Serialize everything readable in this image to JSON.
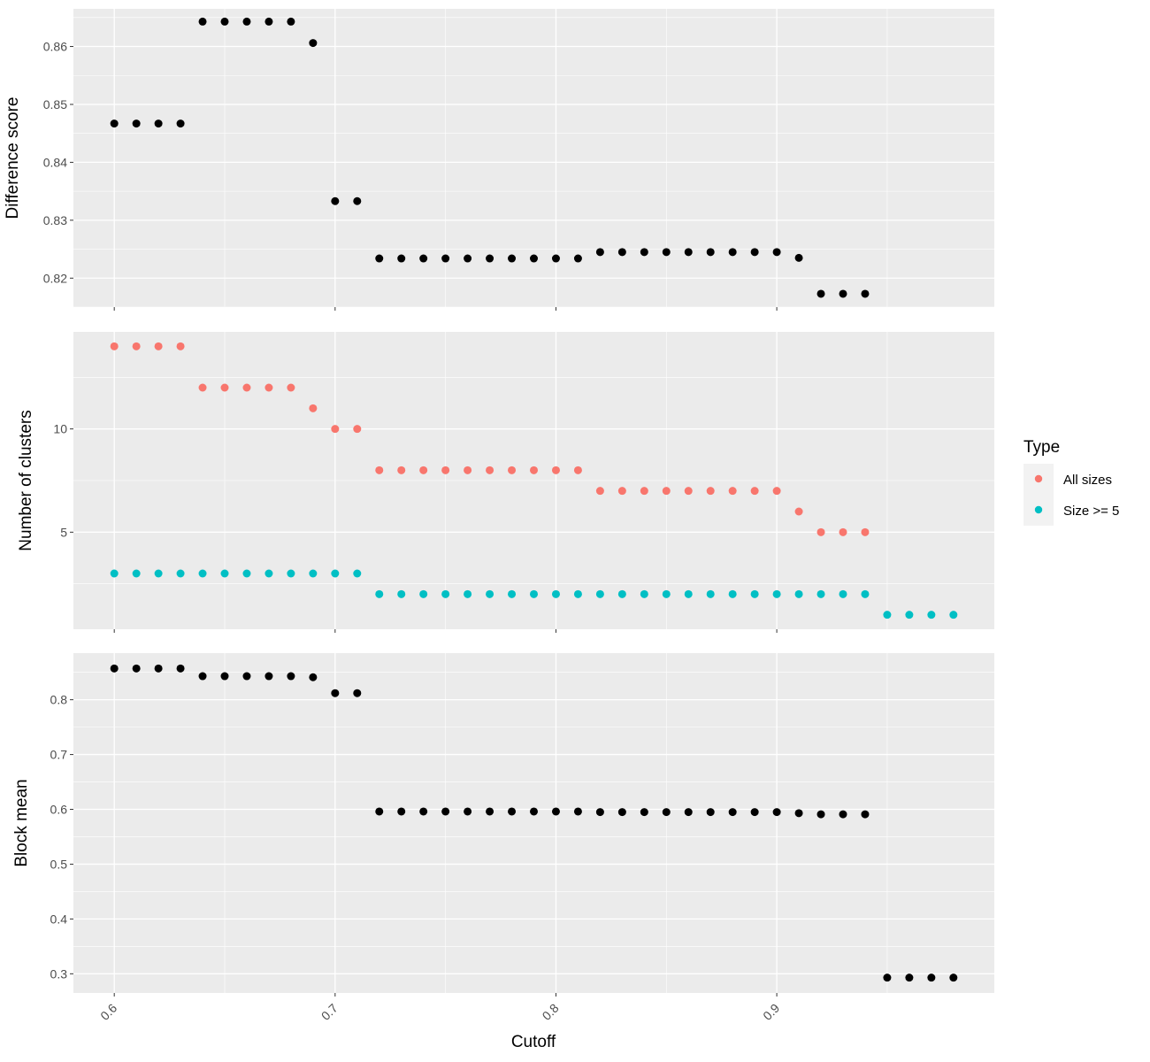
{
  "chart_data": [
    {
      "type": "scatter",
      "ylabel": "Difference score",
      "xlabel": "",
      "ylim": [
        0.815,
        0.8665
      ],
      "yticks": [
        0.82,
        0.83,
        0.84,
        0.85,
        0.86
      ],
      "ytick_labels": [
        "0.82",
        "0.83",
        "0.84",
        "0.85",
        "0.86"
      ],
      "series": [
        {
          "color": "#000000",
          "x": [
            0.6,
            0.61,
            0.62,
            0.63,
            0.64,
            0.65,
            0.66,
            0.67,
            0.68,
            0.69,
            0.7,
            0.71,
            0.72,
            0.73,
            0.74,
            0.75,
            0.76,
            0.77,
            0.78,
            0.79,
            0.8,
            0.81,
            0.82,
            0.83,
            0.84,
            0.85,
            0.86,
            0.87,
            0.88,
            0.89,
            0.9,
            0.91,
            0.92,
            0.93,
            0.94
          ],
          "y": [
            0.8467,
            0.8467,
            0.8467,
            0.8467,
            0.8643,
            0.8643,
            0.8643,
            0.8643,
            0.8643,
            0.8606,
            0.8333,
            0.8333,
            0.8234,
            0.8234,
            0.8234,
            0.8234,
            0.8234,
            0.8234,
            0.8234,
            0.8234,
            0.8234,
            0.8234,
            0.8245,
            0.8245,
            0.8245,
            0.8245,
            0.8245,
            0.8245,
            0.8245,
            0.8245,
            0.8245,
            0.8235,
            0.8173,
            0.8173,
            0.8173
          ]
        }
      ]
    },
    {
      "type": "scatter",
      "ylabel": "Number of clusters",
      "xlabel": "",
      "ylim": [
        0.3,
        14.7
      ],
      "yticks": [
        5,
        10
      ],
      "ytick_labels": [
        "5",
        "10"
      ],
      "series": [
        {
          "name": "All sizes",
          "color": "#F8766D",
          "x": [
            0.6,
            0.61,
            0.62,
            0.63,
            0.64,
            0.65,
            0.66,
            0.67,
            0.68,
            0.69,
            0.7,
            0.71,
            0.72,
            0.73,
            0.74,
            0.75,
            0.76,
            0.77,
            0.78,
            0.79,
            0.8,
            0.81,
            0.82,
            0.83,
            0.84,
            0.85,
            0.86,
            0.87,
            0.88,
            0.89,
            0.9,
            0.91,
            0.92,
            0.93,
            0.94
          ],
          "y": [
            14,
            14,
            14,
            14,
            12,
            12,
            12,
            12,
            12,
            11,
            10,
            10,
            8,
            8,
            8,
            8,
            8,
            8,
            8,
            8,
            8,
            8,
            7,
            7,
            7,
            7,
            7,
            7,
            7,
            7,
            7,
            6,
            5,
            5,
            5
          ]
        },
        {
          "name": "Size >= 5",
          "color": "#00BFC4",
          "x": [
            0.6,
            0.61,
            0.62,
            0.63,
            0.64,
            0.65,
            0.66,
            0.67,
            0.68,
            0.69,
            0.7,
            0.71,
            0.72,
            0.73,
            0.74,
            0.75,
            0.76,
            0.77,
            0.78,
            0.79,
            0.8,
            0.81,
            0.82,
            0.83,
            0.84,
            0.85,
            0.86,
            0.87,
            0.88,
            0.89,
            0.9,
            0.91,
            0.92,
            0.93,
            0.94,
            0.95,
            0.96,
            0.97,
            0.98
          ],
          "y": [
            3,
            3,
            3,
            3,
            3,
            3,
            3,
            3,
            3,
            3,
            3,
            3,
            2,
            2,
            2,
            2,
            2,
            2,
            2,
            2,
            2,
            2,
            2,
            2,
            2,
            2,
            2,
            2,
            2,
            2,
            2,
            2,
            2,
            2,
            2,
            1,
            1,
            1,
            1
          ]
        }
      ]
    },
    {
      "type": "scatter",
      "ylabel": "Block mean",
      "xlabel": "Cutoff",
      "ylim": [
        0.265,
        0.885
      ],
      "yticks": [
        0.3,
        0.4,
        0.5,
        0.6,
        0.7,
        0.8
      ],
      "ytick_labels": [
        "0.3",
        "0.4",
        "0.5",
        "0.6",
        "0.7",
        "0.8"
      ],
      "series": [
        {
          "color": "#000000",
          "x": [
            0.6,
            0.61,
            0.62,
            0.63,
            0.64,
            0.65,
            0.66,
            0.67,
            0.68,
            0.69,
            0.7,
            0.71,
            0.72,
            0.73,
            0.74,
            0.75,
            0.76,
            0.77,
            0.78,
            0.79,
            0.8,
            0.81,
            0.82,
            0.83,
            0.84,
            0.85,
            0.86,
            0.87,
            0.88,
            0.89,
            0.9,
            0.91,
            0.92,
            0.93,
            0.94,
            0.95,
            0.96,
            0.97,
            0.98
          ],
          "y": [
            0.857,
            0.857,
            0.857,
            0.857,
            0.843,
            0.843,
            0.843,
            0.843,
            0.843,
            0.841,
            0.812,
            0.812,
            0.596,
            0.596,
            0.596,
            0.596,
            0.596,
            0.596,
            0.596,
            0.596,
            0.596,
            0.596,
            0.595,
            0.595,
            0.595,
            0.595,
            0.595,
            0.595,
            0.595,
            0.595,
            0.595,
            0.593,
            0.591,
            0.591,
            0.591,
            0.293,
            0.293,
            0.293,
            0.293
          ]
        }
      ]
    }
  ],
  "x_axis": {
    "title": "Cutoff",
    "xlim": [
      0.5815,
      0.9985
    ],
    "ticks": [
      0.6,
      0.7,
      0.8,
      0.9
    ],
    "tick_labels": [
      "0.6",
      "0.7",
      "0.8",
      "0.9"
    ]
  },
  "legend": {
    "title": "Type",
    "position": "right",
    "items": [
      {
        "label": "All sizes",
        "color": "#F8766D"
      },
      {
        "label": "Size >= 5",
        "color": "#00BFC4"
      }
    ]
  },
  "style": {
    "panel_background": "#EBEBEB",
    "grid_color": "#FFFFFF",
    "tick_color": "#333333"
  }
}
